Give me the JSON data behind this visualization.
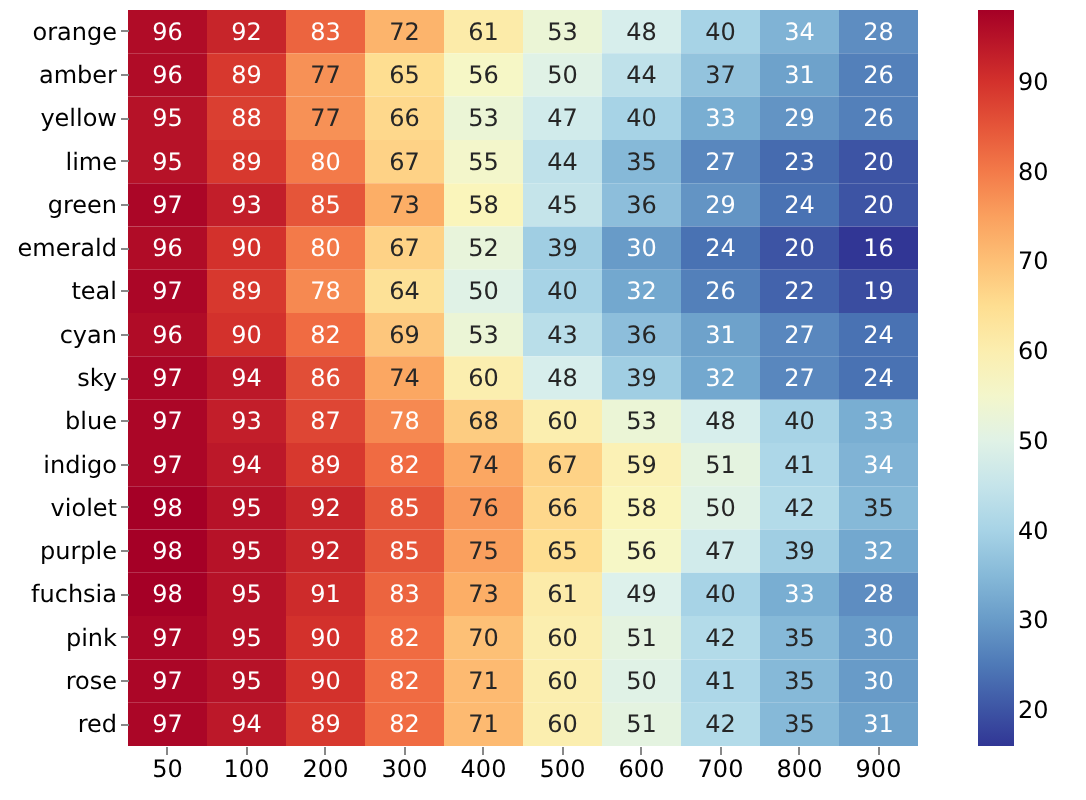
{
  "chart_data": {
    "type": "heatmap",
    "categories": [
      "50",
      "100",
      "200",
      "300",
      "400",
      "500",
      "600",
      "700",
      "800",
      "900"
    ],
    "y_categories": [
      "orange",
      "amber",
      "yellow",
      "lime",
      "green",
      "emerald",
      "teal",
      "cyan",
      "sky",
      "blue",
      "indigo",
      "violet",
      "purple",
      "fuchsia",
      "pink",
      "rose",
      "red"
    ],
    "cells": [
      [
        96,
        92,
        83,
        72,
        61,
        53,
        48,
        40,
        34,
        28
      ],
      [
        96,
        89,
        77,
        65,
        56,
        50,
        44,
        37,
        31,
        26
      ],
      [
        95,
        88,
        77,
        66,
        53,
        47,
        40,
        33,
        29,
        26
      ],
      [
        95,
        89,
        80,
        67,
        55,
        44,
        35,
        27,
        23,
        20
      ],
      [
        97,
        93,
        85,
        73,
        58,
        45,
        36,
        29,
        24,
        20
      ],
      [
        96,
        90,
        80,
        67,
        52,
        39,
        30,
        24,
        20,
        16
      ],
      [
        97,
        89,
        78,
        64,
        50,
        40,
        32,
        26,
        22,
        19
      ],
      [
        96,
        90,
        82,
        69,
        53,
        43,
        36,
        31,
        27,
        24
      ],
      [
        97,
        94,
        86,
        74,
        60,
        48,
        39,
        32,
        27,
        24
      ],
      [
        97,
        93,
        87,
        78,
        68,
        60,
        53,
        48,
        40,
        33
      ],
      [
        97,
        94,
        89,
        82,
        74,
        67,
        59,
        51,
        41,
        34
      ],
      [
        98,
        95,
        92,
        85,
        76,
        66,
        58,
        50,
        42,
        35
      ],
      [
        98,
        95,
        92,
        85,
        75,
        65,
        56,
        47,
        39,
        32
      ],
      [
        98,
        95,
        91,
        83,
        73,
        61,
        49,
        40,
        33,
        28
      ],
      [
        97,
        95,
        90,
        82,
        70,
        60,
        51,
        42,
        35,
        30
      ],
      [
        97,
        95,
        90,
        82,
        71,
        60,
        50,
        41,
        35,
        30
      ],
      [
        97,
        94,
        89,
        82,
        71,
        60,
        51,
        42,
        35,
        31
      ]
    ],
    "clim": [
      16,
      98
    ],
    "cticks": [
      20,
      30,
      40,
      50,
      60,
      70,
      80,
      90
    ],
    "data_labels": true
  }
}
